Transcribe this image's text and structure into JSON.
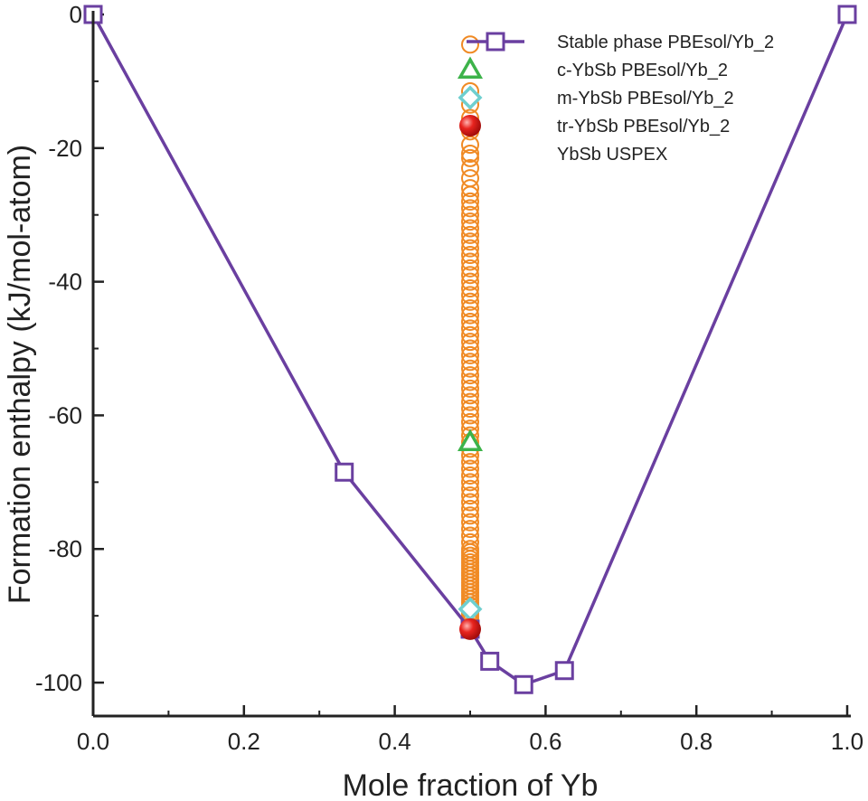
{
  "chart_data": {
    "type": "scatter",
    "xlabel": "Mole fraction of Yb",
    "ylabel": "Formation enthalpy (kJ/mol-atom)",
    "xlim": [
      0.0,
      1.0
    ],
    "ylim": [
      -105,
      0
    ],
    "x_ticks": [
      "0.0",
      "0.2",
      "0.4",
      "0.6",
      "0.8",
      "1.0"
    ],
    "y_ticks": [
      "0",
      "-20",
      "-40",
      "-60",
      "-80",
      "-100"
    ],
    "legend_position": "top-right",
    "colors": {
      "stable": "#6a3fa0",
      "cubic": "#3db34a",
      "monoclinic": "#6fcfcf",
      "trigonal": "#e0201e",
      "uspex": "#f08a24",
      "axis": "#222222"
    },
    "series": [
      {
        "name": "Stable phase  PBEsol/Yb_2",
        "marker": "square",
        "line": true,
        "x": [
          0.0,
          0.333,
          0.5,
          0.526,
          0.571,
          0.625,
          1.0
        ],
        "y": [
          0,
          -68.5,
          -92.0,
          -96.8,
          -100.3,
          -98.2,
          0
        ]
      },
      {
        "name": "c-YbSb  PBEsol/Yb_2",
        "marker": "triangle",
        "x": [
          0.5
        ],
        "y": [
          -64.0
        ]
      },
      {
        "name": "m-YbSb  PBEsol/Yb_2",
        "marker": "diamond",
        "x": [
          0.5
        ],
        "y": [
          -89.0
        ]
      },
      {
        "name": "tr-YbSb  PBEsol/Yb_2",
        "marker": "sphere",
        "x": [
          0.5
        ],
        "y": [
          -92.0
        ]
      },
      {
        "name": "YbSb  USPEX",
        "marker": "circle",
        "x": [
          0.5,
          0.5,
          0.5,
          0.5,
          0.5,
          0.5,
          0.5,
          0.5,
          0.5,
          0.5,
          0.5,
          0.5,
          0.5,
          0.5,
          0.5,
          0.5,
          0.5,
          0.5,
          0.5,
          0.5,
          0.5,
          0.5,
          0.5,
          0.5,
          0.5,
          0.5,
          0.5,
          0.5,
          0.5,
          0.5,
          0.5,
          0.5,
          0.5,
          0.5,
          0.5,
          0.5,
          0.5,
          0.5,
          0.5,
          0.5,
          0.5,
          0.5,
          0.5,
          0.5,
          0.5,
          0.5,
          0.5,
          0.5,
          0.5,
          0.5,
          0.5,
          0.5,
          0.5,
          0.5,
          0.5,
          0.5,
          0.5,
          0.5,
          0.5,
          0.5,
          0.5,
          0.5,
          0.5,
          0.5,
          0.5,
          0.5,
          0.5,
          0.5,
          0.5,
          0.5,
          0.5,
          0.5,
          0.5,
          0.5,
          0.5,
          0.5,
          0.5,
          0.5,
          0.5,
          0.5,
          0.5,
          0.5,
          0.5,
          0.5,
          0.5,
          0.5,
          0.5,
          0.5
        ],
        "y": [
          -4.5,
          -11.5,
          -13.5,
          -15.5,
          -17.5,
          -19.5,
          -21.5,
          -23.0,
          -24.5,
          -26.0,
          -27.0,
          -28.0,
          -29.0,
          -30.0,
          -31.0,
          -32.0,
          -33.0,
          -34.0,
          -35.0,
          -36.0,
          -37.0,
          -38.0,
          -39.0,
          -40.0,
          -41.0,
          -42.0,
          -43.0,
          -44.0,
          -45.0,
          -46.0,
          -47.0,
          -48.0,
          -49.0,
          -50.0,
          -51.0,
          -52.0,
          -53.0,
          -54.0,
          -55.0,
          -56.0,
          -57.0,
          -58.0,
          -59.0,
          -60.0,
          -61.0,
          -62.0,
          -63.0,
          -64.0,
          -65.0,
          -66.0,
          -67.0,
          -68.0,
          -69.0,
          -70.0,
          -71.0,
          -72.0,
          -73.0,
          -74.0,
          -75.0,
          -76.0,
          -77.0,
          -78.0,
          -79.0,
          -80.0,
          -80.5,
          -81.0,
          -81.5,
          -82.0,
          -82.5,
          -83.0,
          -83.5,
          -84.0,
          -84.5,
          -85.0,
          -85.5,
          -86.0,
          -86.5,
          -87.0,
          -87.5,
          -88.0,
          -88.5,
          -89.0,
          -89.5,
          -90.0,
          -90.5,
          -91.0,
          -91.5,
          -92.0
        ]
      }
    ]
  }
}
